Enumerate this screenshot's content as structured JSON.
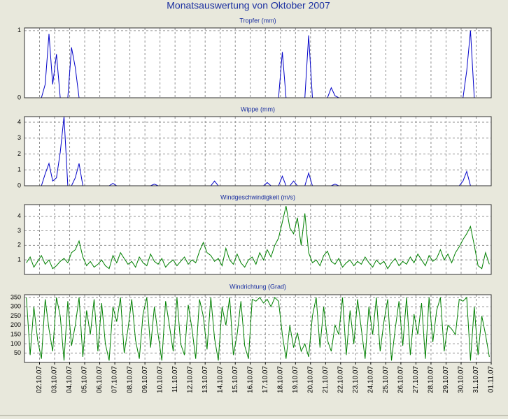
{
  "title": "Monatsauswertung von Oktober 2007",
  "chart_data": [
    {
      "type": "line",
      "title": "Tropfer (mm)",
      "xlim": [
        0,
        31
      ],
      "ylim": [
        0,
        1.04
      ],
      "yticks": [
        0,
        1
      ],
      "grid": true,
      "series": [
        {
          "color": "#0000c8",
          "values": [
            0,
            0,
            0,
            0,
            0,
            0.2,
            0.95,
            0.2,
            0.65,
            0,
            0,
            0,
            0.75,
            0.45,
            0,
            0,
            0,
            0,
            0,
            0,
            0,
            0,
            0,
            0,
            0,
            0,
            0,
            0,
            0,
            0,
            0,
            0,
            0,
            0,
            0,
            0,
            0,
            0,
            0,
            0,
            0,
            0,
            0,
            0,
            0,
            0,
            0,
            0,
            0,
            0,
            0,
            0,
            0,
            0,
            0,
            0,
            0,
            0,
            0,
            0,
            0,
            0,
            0,
            0,
            0,
            0,
            0,
            0,
            0.68,
            0,
            0,
            0,
            0,
            0,
            0,
            0.93,
            0,
            0,
            0,
            0,
            0,
            0.15,
            0.03,
            0,
            0,
            0,
            0,
            0,
            0,
            0,
            0,
            0,
            0,
            0,
            0,
            0,
            0,
            0,
            0,
            0,
            0,
            0,
            0,
            0,
            0,
            0,
            0,
            0,
            0,
            0,
            0,
            0,
            0,
            0,
            0,
            0,
            0,
            0.4,
            1.0,
            0,
            0,
            0,
            0,
            0
          ]
        }
      ]
    },
    {
      "type": "line",
      "title": "Wippe (mm)",
      "xlim": [
        0,
        31
      ],
      "ylim": [
        0,
        4.35
      ],
      "yticks": [
        0,
        1,
        2,
        3,
        4
      ],
      "grid": true,
      "series": [
        {
          "color": "#0000c8",
          "values": [
            0,
            0,
            0,
            0,
            0,
            0.75,
            1.4,
            0.3,
            0.5,
            2.1,
            4.35,
            0,
            0,
            0.5,
            1.4,
            0,
            0,
            0,
            0,
            0,
            0,
            0,
            0,
            0.15,
            0,
            0,
            0,
            0,
            0,
            0,
            0,
            0,
            0,
            0,
            0.1,
            0,
            0,
            0,
            0,
            0,
            0,
            0,
            0,
            0,
            0,
            0,
            0,
            0,
            0,
            0,
            0.3,
            0,
            0,
            0,
            0,
            0,
            0,
            0,
            0,
            0,
            0,
            0,
            0,
            0,
            0.2,
            0,
            0,
            0,
            0.6,
            0,
            0,
            0.3,
            0,
            0,
            0,
            0.8,
            0,
            0,
            0,
            0,
            0,
            0,
            0.1,
            0,
            0,
            0,
            0,
            0,
            0,
            0,
            0,
            0,
            0,
            0,
            0,
            0,
            0,
            0,
            0,
            0,
            0,
            0,
            0,
            0,
            0,
            0,
            0,
            0,
            0,
            0,
            0,
            0,
            0,
            0,
            0,
            0,
            0.3,
            0.9,
            0,
            0,
            0,
            0,
            0,
            0
          ]
        }
      ]
    },
    {
      "type": "line",
      "title": "Windgeschwindigkeit (m/s)",
      "xlim": [
        0,
        31
      ],
      "ylim": [
        0,
        4.8
      ],
      "yticks": [
        1,
        2,
        3,
        4
      ],
      "grid": true,
      "series": [
        {
          "color": "#008000",
          "values": [
            0.8,
            1.2,
            0.5,
            0.9,
            1.3,
            0.7,
            1.0,
            0.4,
            0.6,
            0.9,
            1.1,
            0.8,
            1.5,
            1.7,
            2.3,
            1.2,
            0.6,
            0.9,
            0.5,
            0.7,
            1.0,
            0.6,
            0.4,
            1.3,
            0.8,
            1.5,
            1.1,
            0.7,
            0.9,
            0.5,
            1.2,
            0.8,
            0.6,
            1.4,
            0.9,
            0.7,
            1.1,
            0.5,
            0.8,
            1.0,
            0.6,
            0.9,
            1.2,
            0.7,
            1.0,
            0.8,
            1.6,
            2.2,
            1.5,
            1.3,
            0.9,
            1.1,
            0.6,
            1.8,
            1.0,
            0.7,
            1.4,
            0.8,
            0.5,
            1.0,
            1.2,
            0.7,
            1.5,
            1.0,
            1.7,
            1.2,
            2.0,
            2.5,
            3.6,
            4.7,
            3.2,
            2.8,
            3.9,
            2.0,
            4.2,
            1.5,
            0.8,
            1.0,
            0.6,
            1.3,
            1.6,
            0.9,
            0.7,
            1.1,
            0.5,
            0.8,
            1.0,
            0.6,
            0.9,
            0.7,
            1.2,
            0.8,
            0.5,
            1.0,
            0.7,
            0.9,
            0.4,
            0.8,
            1.1,
            0.6,
            0.9,
            0.7,
            1.2,
            0.8,
            1.4,
            1.0,
            0.6,
            1.3,
            0.9,
            1.1,
            1.7,
            1.0,
            1.4,
            0.8,
            1.5,
            1.9,
            2.4,
            2.8,
            3.3,
            2.0,
            0.6,
            0.4,
            1.5,
            0.7
          ]
        }
      ]
    },
    {
      "type": "line",
      "title": "Windrichtung (Grad)",
      "xlim": [
        0,
        31
      ],
      "ylim": [
        0,
        365
      ],
      "yticks": [
        50,
        100,
        150,
        200,
        250,
        300,
        350
      ],
      "grid": true,
      "series": [
        {
          "color": "#008000",
          "values": [
            350,
            40,
            300,
            120,
            20,
            340,
            180,
            60,
            350,
            250,
            10,
            330,
            90,
            200,
            350,
            30,
            280,
            150,
            340,
            60,
            320,
            100,
            10,
            300,
            220,
            350,
            50,
            180,
            340,
            120,
            20,
            260,
            350,
            80,
            300,
            150,
            10,
            330,
            200,
            60,
            350,
            100,
            40,
            310,
            180,
            20,
            340,
            250,
            70,
            350,
            130,
            10,
            300,
            200,
            350,
            40,
            150,
            330,
            90,
            20,
            340,
            330,
            350,
            320,
            340,
            300,
            350,
            330,
            150,
            20,
            200,
            80,
            160,
            60,
            100,
            30,
            250,
            350,
            80,
            300,
            120,
            60,
            200,
            150,
            350,
            40,
            280,
            100,
            340,
            180,
            20,
            300,
            150,
            350,
            60,
            220,
            340,
            10,
            180,
            330,
            90,
            350,
            40,
            260,
            150,
            320,
            20,
            350,
            110,
            280,
            350,
            60,
            200,
            180,
            150,
            340,
            330,
            350,
            10,
            300,
            40,
            250,
            150,
            30
          ]
        }
      ],
      "xticks": [
        {
          "value": 1,
          "label": "02.10.07"
        },
        {
          "value": 2,
          "label": "03.10.07"
        },
        {
          "value": 3,
          "label": "04.10.07"
        },
        {
          "value": 4,
          "label": "05.10.07"
        },
        {
          "value": 5,
          "label": "06.10.07"
        },
        {
          "value": 6,
          "label": "07.10.07"
        },
        {
          "value": 7,
          "label": "08.10.07"
        },
        {
          "value": 8,
          "label": "09.10.07"
        },
        {
          "value": 9,
          "label": "10.10.07"
        },
        {
          "value": 10,
          "label": "11.10.07"
        },
        {
          "value": 11,
          "label": "12.10.07"
        },
        {
          "value": 12,
          "label": "13.10.07"
        },
        {
          "value": 13,
          "label": "14.10.07"
        },
        {
          "value": 14,
          "label": "15.10.07"
        },
        {
          "value": 15,
          "label": "16.10.07"
        },
        {
          "value": 16,
          "label": "17.10.07"
        },
        {
          "value": 17,
          "label": "18.10.07"
        },
        {
          "value": 18,
          "label": "19.10.07"
        },
        {
          "value": 19,
          "label": "20.10.07"
        },
        {
          "value": 20,
          "label": "21.10.07"
        },
        {
          "value": 21,
          "label": "22.10.07"
        },
        {
          "value": 22,
          "label": "23.10.07"
        },
        {
          "value": 23,
          "label": "24.10.07"
        },
        {
          "value": 24,
          "label": "25.10.07"
        },
        {
          "value": 25,
          "label": "26.10.07"
        },
        {
          "value": 26,
          "label": "27.10.07"
        },
        {
          "value": 27,
          "label": "28.10.07"
        },
        {
          "value": 28,
          "label": "29.10.07"
        },
        {
          "value": 29,
          "label": "30.10.07"
        },
        {
          "value": 30,
          "label": "31.10.07"
        },
        {
          "value": 31,
          "label": "01.11.07"
        }
      ]
    }
  ]
}
